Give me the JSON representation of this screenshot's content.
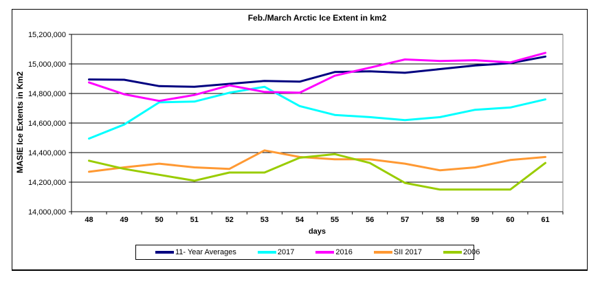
{
  "figure": {
    "title": "Feb./March Arctic Ice Extent in km2",
    "x_axis_title": "days",
    "y_axis_title": "MASIE Ice Extents in Km2"
  },
  "chart_data": {
    "type": "line",
    "title": "Feb./March Arctic Ice Extent in km2",
    "xlabel": "days",
    "ylabel": "MASIE Ice Extents in Km2",
    "x": [
      48,
      49,
      50,
      51,
      52,
      53,
      54,
      55,
      56,
      57,
      58,
      59,
      60,
      61
    ],
    "ylim": [
      14000000,
      15200000
    ],
    "y_ticks": [
      {
        "value": 15200000,
        "label": "15,200,000"
      },
      {
        "value": 15000000,
        "label": "15,000,000"
      },
      {
        "value": 14800000,
        "label": "14,800,000"
      },
      {
        "value": 14600000,
        "label": "14,600,000"
      },
      {
        "value": 14400000,
        "label": "14,400,000"
      },
      {
        "value": 14200000,
        "label": "14,200,000"
      },
      {
        "value": 14000000,
        "label": "14,000,000"
      }
    ],
    "grid": "horizontal",
    "legend_position": "bottom",
    "colors": {
      "gridline": "#000000",
      "frame_right": "#808080",
      "axis": "#000000"
    },
    "series": [
      {
        "name": "11- Year Averages",
        "color": "#000080",
        "values": [
          14895000,
          14893000,
          14850000,
          14845000,
          14865000,
          14885000,
          14880000,
          14945000,
          14950000,
          14940000,
          14965000,
          14990000,
          15005000,
          15050000
        ]
      },
      {
        "name": "2017",
        "color": "#00FFFF",
        "values": [
          14495000,
          14590000,
          14740000,
          14745000,
          14805000,
          14845000,
          14715000,
          14655000,
          14640000,
          14620000,
          14640000,
          14690000,
          14705000,
          14760000
        ]
      },
      {
        "name": "2016",
        "color": "#FF00FF",
        "values": [
          14875000,
          14795000,
          14750000,
          14790000,
          14855000,
          14810000,
          14805000,
          14920000,
          14975000,
          15030000,
          15020000,
          15025000,
          15010000,
          15075000
        ]
      },
      {
        "name": "SII 2017",
        "color": "#FF9933",
        "values": [
          14270000,
          14300000,
          14325000,
          14300000,
          14290000,
          14415000,
          14370000,
          14355000,
          14355000,
          14325000,
          14280000,
          14300000,
          14350000,
          14370000
        ]
      },
      {
        "name": "2006",
        "color": "#99CC00",
        "values": [
          14345000,
          14290000,
          14250000,
          14210000,
          14265000,
          14265000,
          14365000,
          14390000,
          14330000,
          14195000,
          14150000,
          14150000,
          14150000,
          14330000
        ]
      }
    ]
  }
}
